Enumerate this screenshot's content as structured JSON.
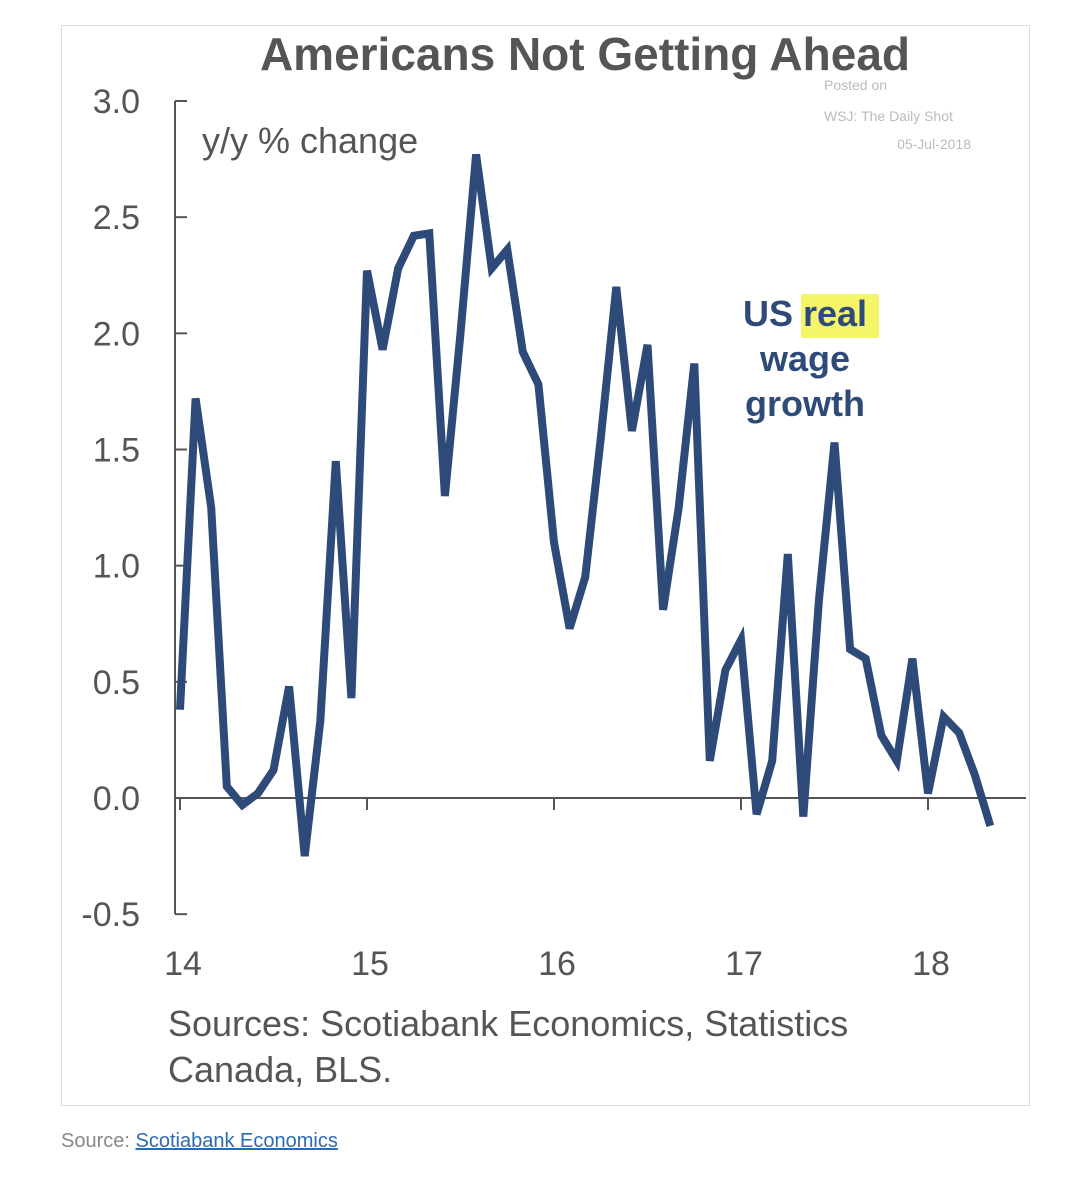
{
  "chart_data": {
    "type": "line",
    "title": "Americans Not Getting Ahead",
    "ylabel": "y/y % change",
    "xlabel": "",
    "ylim": [
      -0.5,
      3.0
    ],
    "yticks": [
      -0.5,
      0.0,
      0.5,
      1.0,
      1.5,
      2.0,
      2.5,
      3.0
    ],
    "ytick_labels": [
      "-0.5",
      "0.0",
      "0.5",
      "1.0",
      "1.5",
      "2.0",
      "2.5",
      "3.0"
    ],
    "xtick_labels": [
      "14",
      "15",
      "16",
      "17",
      "18"
    ],
    "x_start": "Jan 2014",
    "frequency": "monthly",
    "grid": false,
    "series": [
      {
        "name": "US real wage growth",
        "color": "#2e4a78",
        "values": [
          0.38,
          1.72,
          1.25,
          0.05,
          -0.03,
          0.02,
          0.12,
          0.48,
          -0.25,
          0.33,
          1.45,
          0.43,
          2.27,
          1.93,
          2.28,
          2.42,
          2.43,
          1.3,
          2.0,
          2.77,
          2.28,
          2.36,
          1.92,
          1.78,
          1.1,
          0.73,
          0.95,
          1.55,
          2.2,
          1.58,
          1.95,
          0.81,
          1.25,
          1.87,
          0.16,
          0.55,
          0.68,
          -0.07,
          0.16,
          1.05,
          -0.08,
          0.85,
          1.53,
          0.64,
          0.6,
          0.27,
          0.16,
          0.6,
          0.02,
          0.35,
          0.28,
          0.1,
          -0.12
        ]
      }
    ],
    "annotation": {
      "line1_a": "US",
      "line1_b": "real",
      "line2": "wage",
      "line3": "growth"
    },
    "watermark": {
      "line1": "Posted on",
      "line2": "WSJ: The Daily Shot",
      "line3": "05-Jul-2018"
    },
    "sources": [
      "Sources: Scotiabank Economics, Statistics",
      "Canada, BLS."
    ]
  },
  "footer": {
    "label": "Source:",
    "link": "Scotiabank Economics"
  }
}
